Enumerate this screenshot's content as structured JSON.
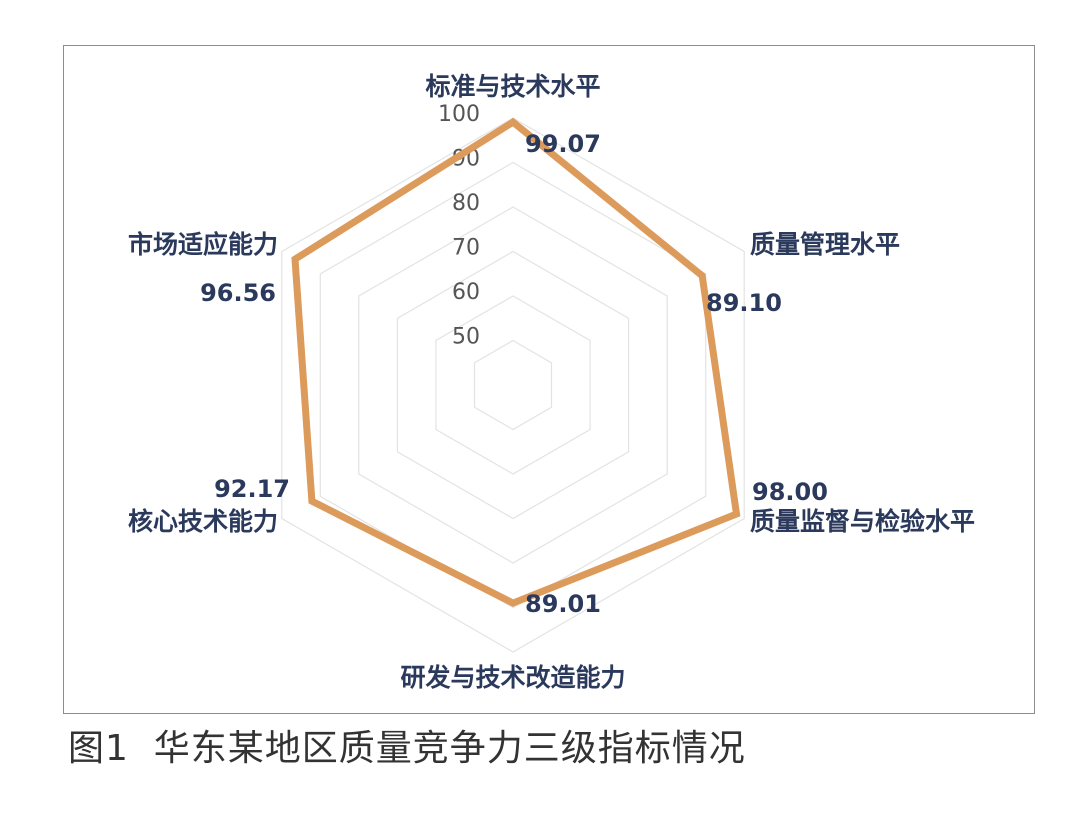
{
  "caption": "图1  华东某地区质量竞争力三级指标情况",
  "colors": {
    "series": "#dc9a5b",
    "grid": "#e3e3e3",
    "frame": "#8d8d8d",
    "label": "#2b3a5c"
  },
  "chart_data": {
    "type": "radar",
    "categories": [
      "标准与技术水平",
      "质量管理水平",
      "质量监督与检验水平",
      "研发与技术改造能力",
      "核心技术能力",
      "市场适应能力"
    ],
    "series": [
      {
        "values": [
          99.07,
          89.1,
          98.0,
          89.01,
          92.17,
          96.56
        ]
      }
    ],
    "value_labels": [
      "99.07",
      "89.10",
      "98.00",
      "89.01",
      "92.17",
      "96.56"
    ],
    "rlim": [
      40,
      100
    ],
    "ticks": [
      50,
      60,
      70,
      80,
      90,
      100
    ],
    "tick_labels": [
      "50",
      "60",
      "70",
      "80",
      "90",
      "100"
    ],
    "grid": true,
    "legend": "none"
  }
}
